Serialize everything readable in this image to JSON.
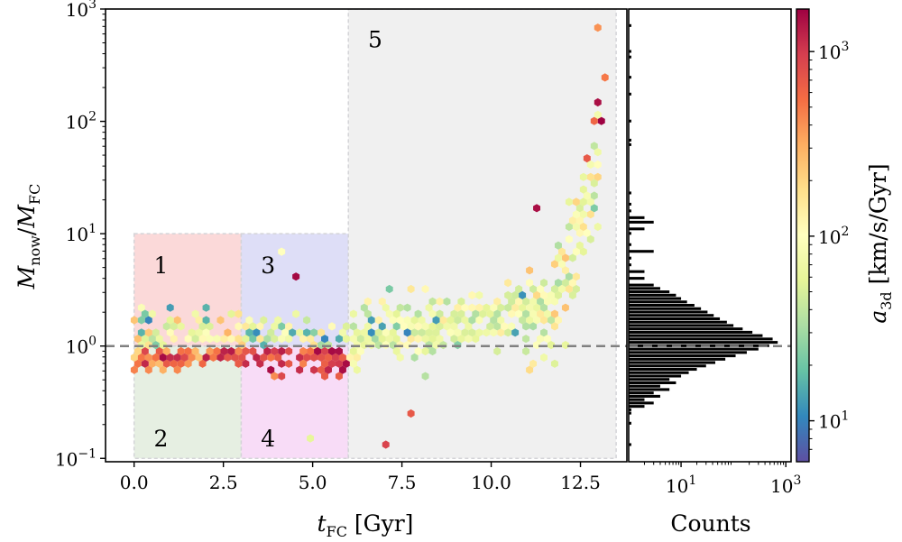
{
  "chart_data": [
    {
      "type": "hexbin",
      "xlabel_main": "t",
      "xlabel_sub": "FC",
      "xlabel_unit": " [Gyr]",
      "ylabel_a": "M",
      "ylabel_a_sub": "now",
      "ylabel_sep": "/",
      "ylabel_b": "M",
      "ylabel_b_sub": "FC",
      "xlim": [
        -0.8,
        13.8
      ],
      "ylim_log10": [
        -1.03,
        3.0
      ],
      "xticks": [
        0.0,
        2.5,
        5.0,
        7.5,
        10.0,
        12.5
      ],
      "xtick_labels": [
        "0.0",
        "2.5",
        "5.0",
        "7.5",
        "10.0",
        "12.5"
      ],
      "yticks_log10": [
        -1,
        0,
        1,
        2,
        3
      ],
      "ytick_base": "10",
      "ytick_exps": [
        "−1",
        "0",
        "1",
        "2",
        "3"
      ],
      "reference_line_y": 1.0,
      "regions": [
        {
          "label": "1",
          "x": [
            0,
            3
          ],
          "y": [
            1.0,
            10.0
          ],
          "color": "#fbd9d9"
        },
        {
          "label": "2",
          "x": [
            0,
            3
          ],
          "y": [
            0.1,
            1.0
          ],
          "color": "#e6efe2"
        },
        {
          "label": "3",
          "x": [
            3,
            6
          ],
          "y": [
            1.0,
            10.0
          ],
          "color": "#dedef7"
        },
        {
          "label": "4",
          "x": [
            3,
            6
          ],
          "y": [
            0.1,
            1.0
          ],
          "color": "#f8dcf7"
        },
        {
          "label": "5",
          "x": [
            6,
            13.5
          ],
          "y": [
            0.1,
            1000.0
          ],
          "color": "#f0f0f0"
        }
      ],
      "hexbins_sample": [
        {
          "x": 12.9,
          "y": 680,
          "a": 400
        },
        {
          "x": 13.1,
          "y": 240,
          "a": 500
        },
        {
          "x": 12.9,
          "y": 140,
          "a": 1500
        },
        {
          "x": 13.1,
          "y": 105,
          "a": 1800
        },
        {
          "x": 12.8,
          "y": 100,
          "a": 600
        },
        {
          "x": 12.9,
          "y": 63,
          "a": 40
        },
        {
          "x": 12.7,
          "y": 46,
          "a": 700
        },
        {
          "x": 12.8,
          "y": 30,
          "a": 250
        },
        {
          "x": 13.0,
          "y": 30,
          "a": 200
        },
        {
          "x": 12.8,
          "y": 16,
          "a": 6
        },
        {
          "x": 11.2,
          "y": 16,
          "a": 1500
        },
        {
          "x": 7.0,
          "y": 0.14,
          "a": 900
        },
        {
          "x": 4.6,
          "y": 4.0,
          "a": 1600
        },
        {
          "x": 4.2,
          "y": 6.5,
          "a": 100
        },
        {
          "x": 7.7,
          "y": 0.25,
          "a": 700
        },
        {
          "x": 5.0,
          "y": 0.15,
          "a": 60
        }
      ],
      "colorbar": {
        "label_main": "a",
        "label_sub": "3d",
        "label_unit": " [km/s/Gyr]",
        "scale": "log",
        "range": [
          6,
          1700
        ],
        "ticks": [
          10,
          100,
          1000
        ],
        "tick_base": "10",
        "tick_exps": [
          "1",
          "2",
          "3"
        ],
        "colormap": "Spectral_r"
      }
    },
    {
      "type": "histogram",
      "orientation": "horizontal",
      "xlabel": "Counts",
      "xscale": "log",
      "xlim_log10": [
        0,
        3.1
      ],
      "xticks_log10": [
        1,
        3
      ],
      "xtick_base": "10",
      "xtick_exps": [
        "1",
        "3"
      ],
      "bar_color": "#000000",
      "bins_log10y": [
        [
          -0.88,
          1
        ],
        [
          -0.69,
          1
        ],
        [
          -0.6,
          1
        ],
        [
          -0.57,
          1
        ],
        [
          -0.54,
          2
        ],
        [
          -0.51,
          3
        ],
        [
          -0.48,
          2
        ],
        [
          -0.45,
          4
        ],
        [
          -0.42,
          3
        ],
        [
          -0.39,
          6
        ],
        [
          -0.36,
          4
        ],
        [
          -0.33,
          8
        ],
        [
          -0.3,
          6
        ],
        [
          -0.27,
          10
        ],
        [
          -0.24,
          14
        ],
        [
          -0.21,
          20
        ],
        [
          -0.18,
          30
        ],
        [
          -0.15,
          45
        ],
        [
          -0.12,
          70
        ],
        [
          -0.09,
          110
        ],
        [
          -0.06,
          180
        ],
        [
          -0.03,
          300
        ],
        [
          0.0,
          480
        ],
        [
          0.03,
          700
        ],
        [
          0.06,
          560
        ],
        [
          0.09,
          360
        ],
        [
          0.12,
          230
        ],
        [
          0.15,
          150
        ],
        [
          0.18,
          100
        ],
        [
          0.21,
          75
        ],
        [
          0.24,
          55
        ],
        [
          0.27,
          42
        ],
        [
          0.3,
          32
        ],
        [
          0.33,
          24
        ],
        [
          0.36,
          18
        ],
        [
          0.39,
          13
        ],
        [
          0.42,
          10
        ],
        [
          0.45,
          8
        ],
        [
          0.48,
          6
        ],
        [
          0.51,
          4
        ],
        [
          0.54,
          3
        ],
        [
          0.6,
          2
        ],
        [
          0.66,
          2
        ],
        [
          0.72,
          1
        ],
        [
          0.78,
          1
        ],
        [
          0.84,
          3
        ],
        [
          0.9,
          1
        ],
        [
          1.0,
          1
        ],
        [
          1.04,
          2
        ],
        [
          1.1,
          3
        ],
        [
          1.14,
          2
        ],
        [
          1.2,
          1
        ],
        [
          1.26,
          1
        ],
        [
          1.36,
          1
        ],
        [
          1.79,
          1
        ],
        [
          1.83,
          1
        ],
        [
          2.0,
          1
        ],
        [
          2.24,
          1
        ],
        [
          2.39,
          1
        ],
        [
          2.57,
          1
        ],
        [
          2.62,
          1
        ],
        [
          2.85,
          1
        ]
      ]
    }
  ]
}
